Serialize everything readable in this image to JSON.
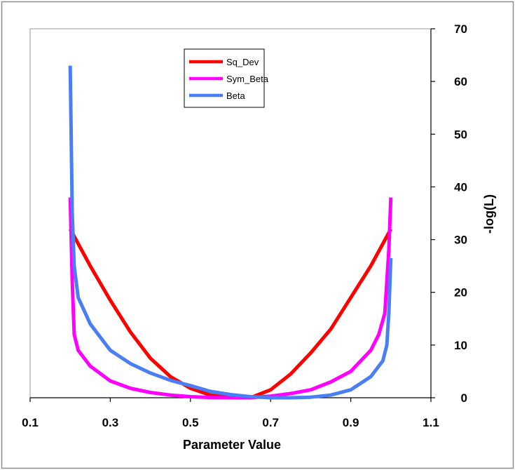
{
  "chart_data": {
    "type": "line",
    "title": "",
    "xlabel": "Parameter Value",
    "ylabel": "-log(L)",
    "xlim": [
      0.1,
      1.1
    ],
    "ylim": [
      0,
      70
    ],
    "x_ticks": [
      "0.1",
      "0.3",
      "0.5",
      "0.7",
      "0.9",
      "1.1"
    ],
    "y_ticks": [
      "0",
      "10",
      "20",
      "30",
      "40",
      "50",
      "60",
      "70"
    ],
    "x_tick_values": [
      0.1,
      0.3,
      0.5,
      0.7,
      0.9,
      1.1
    ],
    "y_tick_values": [
      0,
      10,
      20,
      30,
      40,
      50,
      60,
      70
    ],
    "y_axis_side": "right",
    "grid": false,
    "legend_position": "top-center",
    "series": [
      {
        "name": "Sq_Dev",
        "color": "#ff0000",
        "x": [
          0.2,
          0.25,
          0.3,
          0.35,
          0.4,
          0.45,
          0.5,
          0.55,
          0.6,
          0.65,
          0.7,
          0.75,
          0.8,
          0.85,
          0.9,
          0.95,
          1.0
        ],
        "y": [
          32,
          25,
          18.5,
          12.5,
          7.5,
          4,
          1.8,
          0.5,
          0,
          0,
          1.5,
          4.5,
          8.5,
          13,
          19,
          25,
          32
        ]
      },
      {
        "name": "Sym_Beta",
        "color": "#ff00ff",
        "x": [
          0.2,
          0.205,
          0.21,
          0.22,
          0.25,
          0.3,
          0.35,
          0.4,
          0.45,
          0.5,
          0.55,
          0.6,
          0.65,
          0.7,
          0.75,
          0.8,
          0.85,
          0.9,
          0.95,
          0.97,
          0.985,
          0.995,
          1.0
        ],
        "y": [
          38,
          22,
          12,
          9,
          6,
          3.2,
          1.8,
          1,
          0.5,
          0.2,
          0.05,
          0,
          0,
          0.3,
          0.8,
          1.5,
          3,
          5,
          9,
          12,
          16,
          28,
          38
        ]
      },
      {
        "name": "Beta",
        "color": "#4a7ef5",
        "x": [
          0.2,
          0.205,
          0.21,
          0.22,
          0.25,
          0.3,
          0.35,
          0.4,
          0.45,
          0.5,
          0.55,
          0.6,
          0.65,
          0.7,
          0.75,
          0.8,
          0.85,
          0.9,
          0.95,
          0.98,
          0.99,
          0.995,
          1.0
        ],
        "y": [
          63,
          35,
          25,
          19,
          14,
          9,
          6.5,
          4.7,
          3.3,
          2.3,
          1.2,
          0.6,
          0.2,
          0,
          0,
          0.1,
          0.5,
          1.5,
          4,
          7,
          10,
          16,
          26.5
        ]
      }
    ]
  }
}
